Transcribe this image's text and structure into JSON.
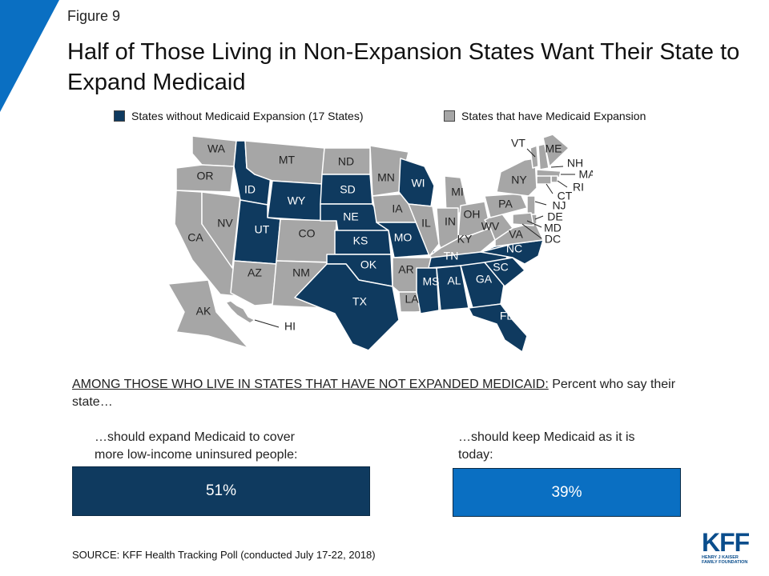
{
  "figure_label": "Figure 9",
  "title": "Half of Those Living in Non-Expansion States Want Their State to Expand Medicaid",
  "colors": {
    "non_expansion": "#0f3a5f",
    "expansion": "#a6a6a6",
    "accent": "#0a6fc2",
    "bar_dark": "#0f3a5f",
    "bar_light": "#0a6fc2"
  },
  "legend": {
    "non_expansion": "States without Medicaid Expansion (17 States)",
    "expansion": "States that have Medicaid Expansion"
  },
  "map": {
    "non_expansion_states": [
      "ID",
      "UT",
      "WY",
      "SD",
      "NE",
      "KS",
      "OK",
      "TX",
      "WI",
      "MO",
      "TN",
      "MS",
      "AL",
      "GA",
      "SC",
      "NC",
      "FL"
    ],
    "state_labels": [
      "WA",
      "OR",
      "CA",
      "NV",
      "ID",
      "MT",
      "WY",
      "UT",
      "CO",
      "AZ",
      "NM",
      "ND",
      "SD",
      "NE",
      "KS",
      "OK",
      "TX",
      "MN",
      "IA",
      "MO",
      "AR",
      "LA",
      "WI",
      "IL",
      "MI",
      "IN",
      "OH",
      "KY",
      "TN",
      "MS",
      "AL",
      "GA",
      "FL",
      "SC",
      "NC",
      "VA",
      "WV",
      "PA",
      "NY",
      "VT",
      "ME",
      "NH",
      "MA",
      "RI",
      "CT",
      "NJ",
      "DE",
      "MD",
      "DC",
      "AK",
      "HI"
    ]
  },
  "question": {
    "underlined": "AMONG THOSE WHO LIVE IN STATES THAT HAVE NOT EXPANDED MEDICAID:",
    "rest": " Percent who say their state…"
  },
  "bars": [
    {
      "label_line1": "…should expand Medicaid to cover",
      "label_line2": "more low-income uninsured people:",
      "value_text": "51%",
      "value": 51
    },
    {
      "label_line1": "…should keep Medicaid as it is",
      "label_line2": "today:",
      "value_text": "39%",
      "value": 39
    }
  ],
  "source": "SOURCE: KFF Health Tracking Poll (conducted July 17-22, 2018)",
  "logo": {
    "main": "KFF",
    "sub1": "HENRY J KAISER",
    "sub2": "FAMILY FOUNDATION"
  }
}
